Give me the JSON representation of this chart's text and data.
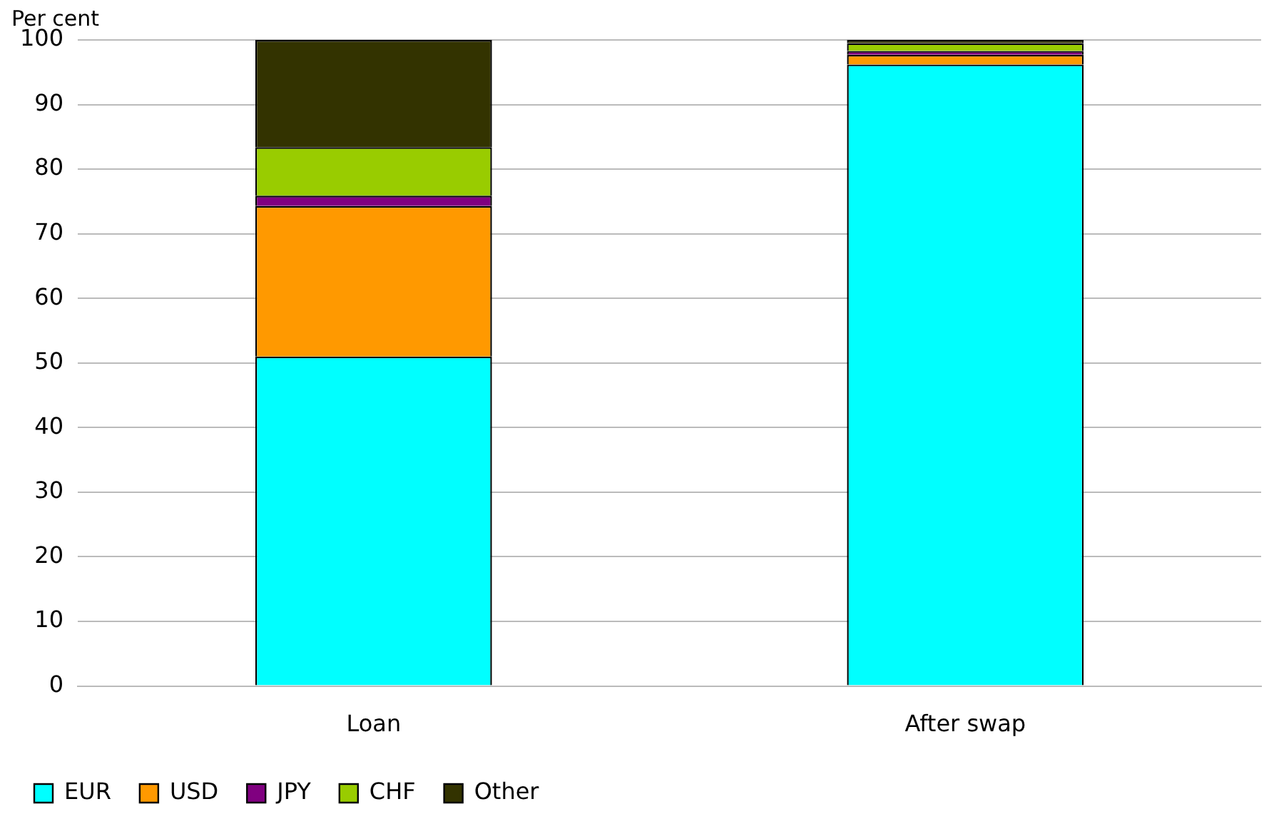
{
  "chart_data": {
    "type": "bar",
    "stacked": true,
    "ylabel": "Per cent",
    "categories": [
      "Loan",
      "After swap"
    ],
    "series": [
      {
        "name": "EUR",
        "color": "#00ffff",
        "values": [
          51.0,
          96.2
        ]
      },
      {
        "name": "USD",
        "color": "#ff9900",
        "values": [
          23.3,
          1.5
        ]
      },
      {
        "name": "JPY",
        "color": "#800080",
        "values": [
          1.6,
          0.6
        ]
      },
      {
        "name": "CHF",
        "color": "#99cc00",
        "values": [
          7.5,
          1.2
        ]
      },
      {
        "name": "Other",
        "color": "#333300",
        "values": [
          16.6,
          0.5
        ]
      }
    ],
    "ylim": [
      0,
      100
    ],
    "yticks": [
      0,
      10,
      20,
      30,
      40,
      50,
      60,
      70,
      80,
      90,
      100
    ],
    "grid": "y",
    "legend": "bottom left"
  }
}
